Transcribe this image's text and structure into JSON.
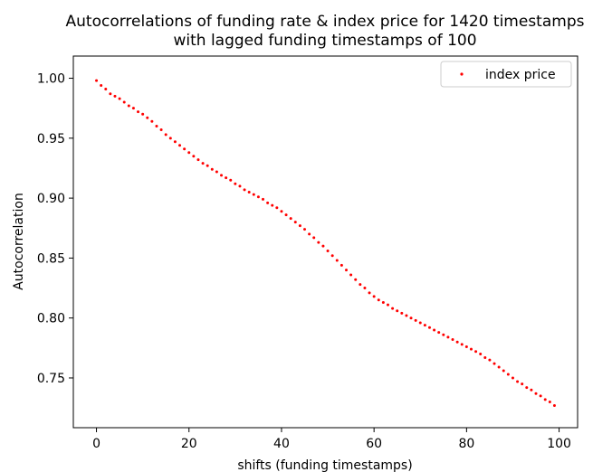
{
  "chart_data": {
    "type": "scatter",
    "title": "Autocorrelations of funding rate & index price for 1420 timestamps\nwith lagged funding timestamps of 100",
    "xlabel": "shifts (funding timestamps)",
    "ylabel": "Autocorrelation",
    "xlim": [
      -5,
      104
    ],
    "ylim": [
      0.7085,
      1.0185
    ],
    "xticks": [
      0,
      20,
      40,
      60,
      80,
      100
    ],
    "yticks": [
      0.75,
      0.8,
      0.85,
      0.9,
      0.95,
      1.0
    ],
    "xtick_labels": [
      "0",
      "20",
      "40",
      "60",
      "80",
      "100"
    ],
    "ytick_labels": [
      "0.75",
      "0.80",
      "0.85",
      "0.90",
      "0.95",
      "1.00"
    ],
    "grid": false,
    "legend": {
      "position": "top-right",
      "entries": [
        "index price"
      ]
    },
    "colors": {
      "index price": "#ff0000"
    },
    "series": [
      {
        "name": "index price",
        "x": [
          0,
          1,
          2,
          3,
          4,
          5,
          6,
          7,
          8,
          9,
          10,
          11,
          12,
          13,
          14,
          15,
          16,
          17,
          18,
          19,
          20,
          21,
          22,
          23,
          24,
          25,
          26,
          27,
          28,
          29,
          30,
          31,
          32,
          33,
          34,
          35,
          36,
          37,
          38,
          39,
          40,
          41,
          42,
          43,
          44,
          45,
          46,
          47,
          48,
          49,
          50,
          51,
          52,
          53,
          54,
          55,
          56,
          57,
          58,
          59,
          60,
          61,
          62,
          63,
          64,
          65,
          66,
          67,
          68,
          69,
          70,
          71,
          72,
          73,
          74,
          75,
          76,
          77,
          78,
          79,
          80,
          81,
          82,
          83,
          84,
          85,
          86,
          87,
          88,
          89,
          90,
          91,
          92,
          93,
          94,
          95,
          96,
          97,
          98,
          99
        ],
        "y": [
          0.998,
          0.994,
          0.991,
          0.987,
          0.985,
          0.983,
          0.98,
          0.977,
          0.975,
          0.972,
          0.97,
          0.967,
          0.964,
          0.96,
          0.957,
          0.953,
          0.95,
          0.947,
          0.944,
          0.941,
          0.938,
          0.935,
          0.932,
          0.929,
          0.927,
          0.924,
          0.922,
          0.919,
          0.917,
          0.915,
          0.912,
          0.91,
          0.907,
          0.905,
          0.903,
          0.901,
          0.899,
          0.896,
          0.894,
          0.892,
          0.889,
          0.886,
          0.883,
          0.88,
          0.877,
          0.874,
          0.87,
          0.867,
          0.863,
          0.86,
          0.856,
          0.852,
          0.848,
          0.844,
          0.84,
          0.836,
          0.832,
          0.828,
          0.825,
          0.821,
          0.818,
          0.815,
          0.813,
          0.811,
          0.808,
          0.806,
          0.804,
          0.802,
          0.8,
          0.798,
          0.796,
          0.794,
          0.792,
          0.79,
          0.788,
          0.786,
          0.784,
          0.782,
          0.78,
          0.778,
          0.776,
          0.774,
          0.772,
          0.77,
          0.767,
          0.765,
          0.762,
          0.759,
          0.756,
          0.753,
          0.75,
          0.747,
          0.745,
          0.742,
          0.74,
          0.737,
          0.735,
          0.732,
          0.73,
          0.727
        ]
      }
    ]
  }
}
